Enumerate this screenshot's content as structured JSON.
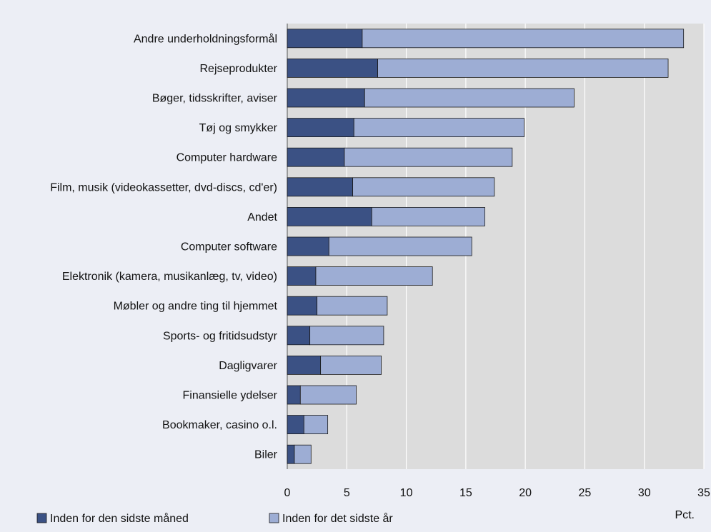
{
  "chart_data": {
    "type": "bar",
    "orientation": "horizontal",
    "stacked": true,
    "categories": [
      "Andre underholdningsformål",
      "Rejseprodukter",
      "Bøger, tidsskrifter, aviser",
      "Tøj og smykker",
      "Computer hardware",
      "Film, musik (videokassetter, dvd-discs, cd'er)",
      "Andet",
      "Computer software",
      "Elektronik (kamera, musikanlæg, tv, video)",
      "Møbler og andre ting til hjemmet",
      "Sports- og fritidsudstyr",
      "Dagligvarer",
      "Finansielle ydelser",
      "Bookmaker, casino o.l.",
      "Biler"
    ],
    "series": [
      {
        "name": "Inden for den sidste måned",
        "color": "#3b5184",
        "values": [
          6.3,
          7.6,
          6.5,
          5.6,
          4.8,
          5.5,
          7.1,
          3.5,
          2.4,
          2.5,
          1.9,
          2.8,
          1.1,
          1.4,
          0.6
        ]
      },
      {
        "name": "Inden for det sidste år",
        "color": "#9dadd4",
        "values": [
          27.0,
          24.4,
          17.6,
          14.3,
          14.1,
          11.9,
          9.5,
          12.0,
          9.8,
          5.9,
          6.2,
          5.1,
          4.7,
          2.0,
          1.4
        ]
      }
    ],
    "xlim": [
      0,
      35
    ],
    "xticks": [
      0,
      5,
      10,
      15,
      20,
      25,
      30,
      35
    ],
    "xticklabels": [
      "0",
      "5",
      "10",
      "15",
      "20",
      "25",
      "30",
      "35"
    ],
    "xlabel": "Pct.",
    "grid": true,
    "legend_position": "bottom"
  }
}
